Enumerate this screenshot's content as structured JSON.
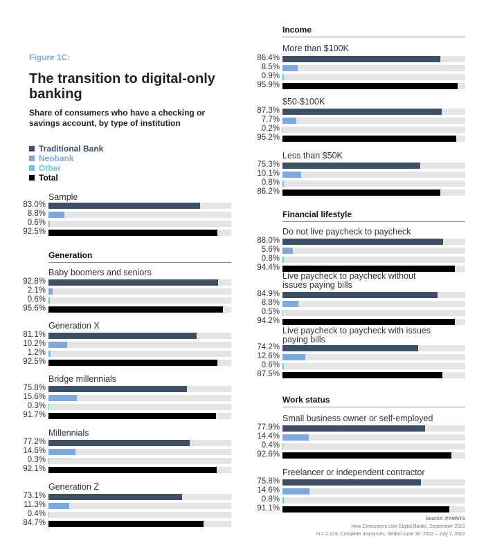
{
  "figure_label": "Figure 1C:",
  "title": "The transition to digital-only banking",
  "subtitle": "Share of consumers who have a checking or savings account, by type of institution",
  "source": [
    "Source: PYMNTS",
    "How Consumers Use Digital Banks, September 2022",
    "N = 2,124: Complete responses, fielded June 30, 2022 – July 7, 2022"
  ],
  "chart_data": {
    "type": "bar",
    "orientation": "horizontal",
    "title": "The transition to digital-only banking",
    "xlim": [
      0,
      100
    ],
    "series": [
      {
        "name": "Traditional Bank",
        "color": "#3e4e63"
      },
      {
        "name": "Neobank",
        "color": "#7fa8dc"
      },
      {
        "name": "Other",
        "color": "#6cc5dd"
      },
      {
        "name": "Total",
        "color": "#000000"
      }
    ],
    "track_color": "#e4e4e4",
    "sections": [
      {
        "name": "",
        "groups": [
          {
            "label": "Sample",
            "values": [
              83.0,
              8.8,
              0.6,
              92.5
            ]
          }
        ]
      },
      {
        "name": "Generation",
        "groups": [
          {
            "label": "Baby boomers and seniors",
            "values": [
              92.8,
              2.1,
              0.6,
              95.6
            ]
          },
          {
            "label": "Generation X",
            "values": [
              81.1,
              10.2,
              1.2,
              92.5
            ]
          },
          {
            "label": "Bridge millennials",
            "values": [
              75.8,
              15.6,
              0.3,
              91.7
            ]
          },
          {
            "label": "Millennials",
            "values": [
              77.2,
              14.6,
              0.3,
              92.1
            ]
          },
          {
            "label": "Generation Z",
            "values": [
              73.1,
              11.3,
              0.4,
              84.7
            ]
          }
        ]
      },
      {
        "name": "Income",
        "groups": [
          {
            "label": "More than $100K",
            "values": [
              86.4,
              8.5,
              0.9,
              95.9
            ]
          },
          {
            "label": "$50-$100K",
            "values": [
              87.3,
              7.7,
              0.2,
              95.2
            ]
          },
          {
            "label": "Less than $50K",
            "values": [
              75.3,
              10.1,
              0.8,
              86.2
            ]
          }
        ]
      },
      {
        "name": "Financial lifestyle",
        "groups": [
          {
            "label": "Do not live paycheck to paycheck",
            "values": [
              88.0,
              5.6,
              0.8,
              94.4
            ]
          },
          {
            "label": "Live paycheck to paycheck without issues paying bills",
            "values": [
              84.9,
              8.8,
              0.5,
              94.2
            ]
          },
          {
            "label": "Live paycheck to paycheck with issues paying bills",
            "values": [
              74.2,
              12.6,
              0.6,
              87.5
            ]
          }
        ]
      },
      {
        "name": "Work status",
        "groups": [
          {
            "label": "Small business owner or self-employed",
            "values": [
              77.9,
              14.4,
              0.4,
              92.6
            ]
          },
          {
            "label": "Freelancer or independent contractor",
            "values": [
              75.8,
              14.6,
              0.8,
              91.1
            ]
          }
        ]
      }
    ]
  }
}
